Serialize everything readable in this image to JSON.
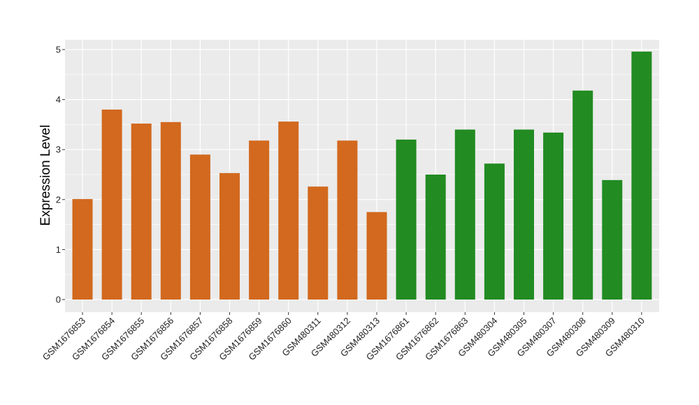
{
  "chart_data": {
    "type": "bar",
    "title": "",
    "xlabel": "",
    "ylabel": "Expression Level",
    "ylim": [
      0,
      5.2
    ],
    "yticks": [
      0,
      1,
      2,
      3,
      4,
      5
    ],
    "grid": true,
    "categories": [
      "GSM1676853",
      "GSM1676854",
      "GSM1676855",
      "GSM1676856",
      "GSM1676857",
      "GSM1676858",
      "GSM1676859",
      "GSM1676860",
      "GSM480311",
      "GSM480312",
      "GSM480313",
      "GSM1676861",
      "GSM1676862",
      "GSM1676863",
      "GSM480304",
      "GSM480305",
      "GSM480307",
      "GSM480308",
      "GSM480309",
      "GSM480310"
    ],
    "values": [
      2.01,
      3.8,
      3.52,
      3.55,
      2.9,
      2.53,
      3.18,
      3.56,
      2.26,
      3.18,
      1.75,
      3.2,
      2.5,
      3.4,
      2.72,
      3.4,
      3.34,
      4.18,
      2.39,
      4.96
    ],
    "group_colors": [
      "#d2691e",
      "#d2691e",
      "#d2691e",
      "#d2691e",
      "#d2691e",
      "#d2691e",
      "#d2691e",
      "#d2691e",
      "#d2691e",
      "#d2691e",
      "#d2691e",
      "#228b22",
      "#228b22",
      "#228b22",
      "#228b22",
      "#228b22",
      "#228b22",
      "#228b22",
      "#228b22",
      "#228b22"
    ],
    "panel_background": "#ebebeb",
    "gridline_color": "#ffffff"
  }
}
